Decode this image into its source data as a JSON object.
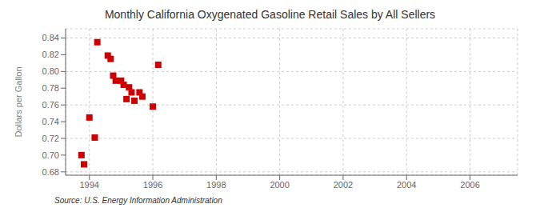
{
  "chart_data": {
    "type": "scatter",
    "title": "Monthly California Oxygenated Gasoline Retail Sales by All Sellers",
    "ylabel": "Dollars per Gallon",
    "annotations": [
      "Source: U.S. Energy Information Administration"
    ],
    "x": [
      1993.75,
      1993.83,
      1994.0,
      1994.17,
      1994.25,
      1994.58,
      1994.67,
      1994.75,
      1994.83,
      1995.0,
      1995.08,
      1995.17,
      1995.25,
      1995.33,
      1995.42,
      1995.58,
      1995.67,
      1996.0,
      1996.17
    ],
    "values": [
      0.7,
      0.689,
      0.745,
      0.721,
      0.835,
      0.819,
      0.815,
      0.795,
      0.789,
      0.789,
      0.784,
      0.767,
      0.781,
      0.775,
      0.765,
      0.775,
      0.77,
      0.758,
      0.808
    ],
    "color": "#cc0000",
    "marker": "square",
    "xlim": [
      1993.25,
      2007.5
    ],
    "ylim": [
      0.676,
      0.851
    ],
    "xticks": [
      1994,
      1996,
      1998,
      2000,
      2002,
      2004,
      2006
    ],
    "yticks": [
      0.68,
      {
        "value": 0.7,
        "label": "0.70"
      },
      0.72,
      0.74,
      0.76,
      0.78,
      {
        "value": 0.8,
        "label": "0.80"
      },
      0.82,
      0.84
    ],
    "grid": true
  }
}
